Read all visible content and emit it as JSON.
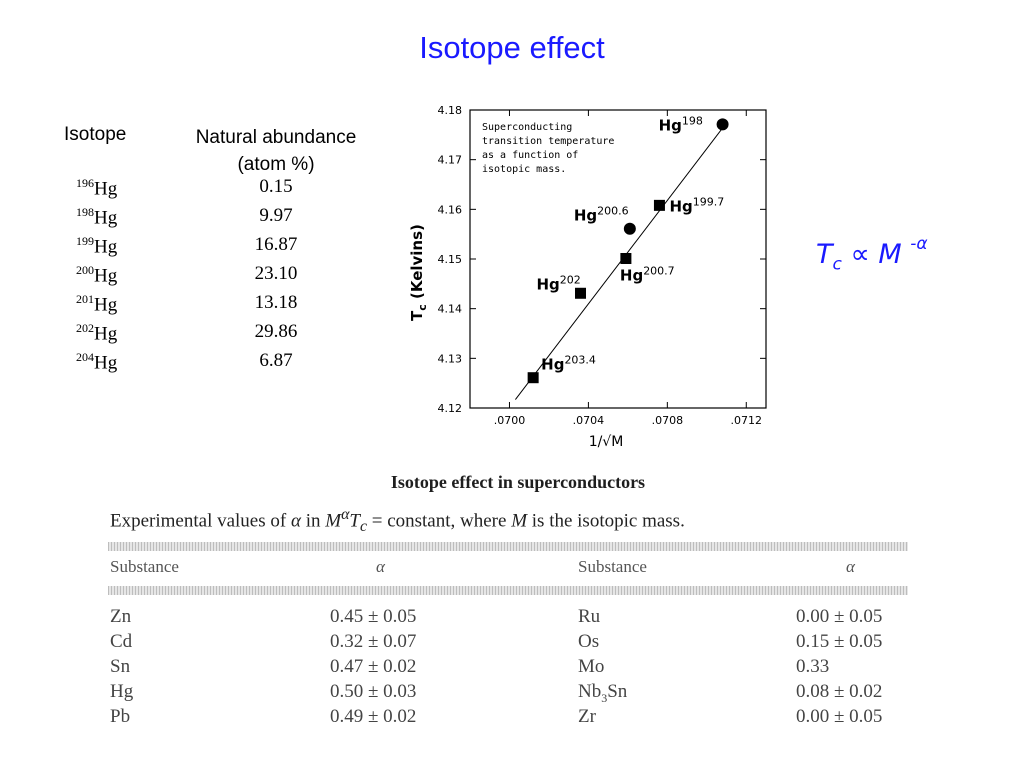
{
  "title": "Isotope effect",
  "isotope_table": {
    "col_isotope": "Isotope",
    "col_abundance_line1": "Natural abundance",
    "col_abundance_line2": "(atom %)",
    "rows": [
      {
        "mass": "196",
        "element": "Hg",
        "abundance": "0.15"
      },
      {
        "mass": "198",
        "element": "Hg",
        "abundance": "9.97"
      },
      {
        "mass": "199",
        "element": "Hg",
        "abundance": "16.87"
      },
      {
        "mass": "200",
        "element": "Hg",
        "abundance": "23.10"
      },
      {
        "mass": "201",
        "element": "Hg",
        "abundance": "13.18"
      },
      {
        "mass": "202",
        "element": "Hg",
        "abundance": "29.86"
      },
      {
        "mass": "204",
        "element": "Hg",
        "abundance": "6.87"
      }
    ]
  },
  "relation": {
    "t": "T",
    "c": "c",
    "prop": "∝",
    "m": "M",
    "exp": "-α"
  },
  "chart_data": {
    "type": "scatter",
    "xlabel": "1/√M",
    "ylabel": "Tc (Kelvins)",
    "ylabel_main": "T",
    "ylabel_sub": "c",
    "ylabel_rest": "(Kelvins)",
    "annotation": [
      "Superconducting",
      "transition temperature",
      "as a function of",
      "isotopic mass."
    ],
    "xlim": [
      0.0698,
      0.0713
    ],
    "ylim": [
      4.12,
      4.18
    ],
    "x_ticks": [
      0.07,
      0.0704,
      0.0708,
      0.0712
    ],
    "x_tick_labels": [
      ".0700",
      ".0704",
      ".0708",
      ".0712"
    ],
    "y_ticks": [
      4.12,
      4.13,
      4.14,
      4.15,
      4.16,
      4.17,
      4.18
    ],
    "y_tick_labels": [
      "4.12",
      "4.13",
      "4.14",
      "4.15",
      "4.16",
      "4.17",
      "4.18"
    ],
    "grid": false,
    "points": [
      {
        "label": "Hg",
        "mass": "198",
        "x": 0.07108,
        "y": 4.1771,
        "marker": "circle"
      },
      {
        "label": "Hg",
        "mass": "199.7",
        "x": 0.07076,
        "y": 4.1608,
        "marker": "square"
      },
      {
        "label": "Hg",
        "mass": "200.6",
        "x": 0.07061,
        "y": 4.1561,
        "marker": "circle"
      },
      {
        "label": "Hg",
        "mass": "200.7",
        "x": 0.07059,
        "y": 4.1501,
        "marker": "square"
      },
      {
        "label": "Hg",
        "mass": "202",
        "x": 0.07036,
        "y": 4.1431,
        "marker": "square"
      },
      {
        "label": "Hg",
        "mass": "203.4",
        "x": 0.07012,
        "y": 4.1261,
        "marker": "square"
      }
    ],
    "fit_line": [
      [
        0.07003,
        4.1217
      ],
      [
        0.07109,
        4.1769
      ]
    ]
  },
  "alpha_table": {
    "title": "Isotope effect in superconductors",
    "caption": "Experimental values of α in MαTc = constant, where M is the isotopic mass.",
    "caption_parts": {
      "a": "Experimental values of ",
      "alpha": "α",
      "b": " in ",
      "m": "M",
      "sup": "α",
      "t": "T",
      "c": "c",
      "d": " = constant, where ",
      "m2": "M",
      "e": " is the isotopic mass."
    },
    "headers": [
      "Substance",
      "α",
      "Substance",
      "α"
    ],
    "rows": [
      [
        "Zn",
        "0.45 ± 0.05",
        "Ru",
        "0.00 ± 0.05"
      ],
      [
        "Cd",
        "0.32 ± 0.07",
        "Os",
        "0.15 ± 0.05"
      ],
      [
        "Sn",
        "0.47 ± 0.02",
        "Mo",
        "0.33"
      ],
      [
        "Hg",
        "0.50 ± 0.03",
        "Nb3Sn",
        "0.08 ± 0.02"
      ],
      [
        "Pb",
        "0.49 ± 0.02",
        "Zr",
        "0.00 ± 0.05"
      ]
    ],
    "nb3sn": {
      "a": "Nb",
      "sub": "3",
      "b": "Sn"
    }
  }
}
